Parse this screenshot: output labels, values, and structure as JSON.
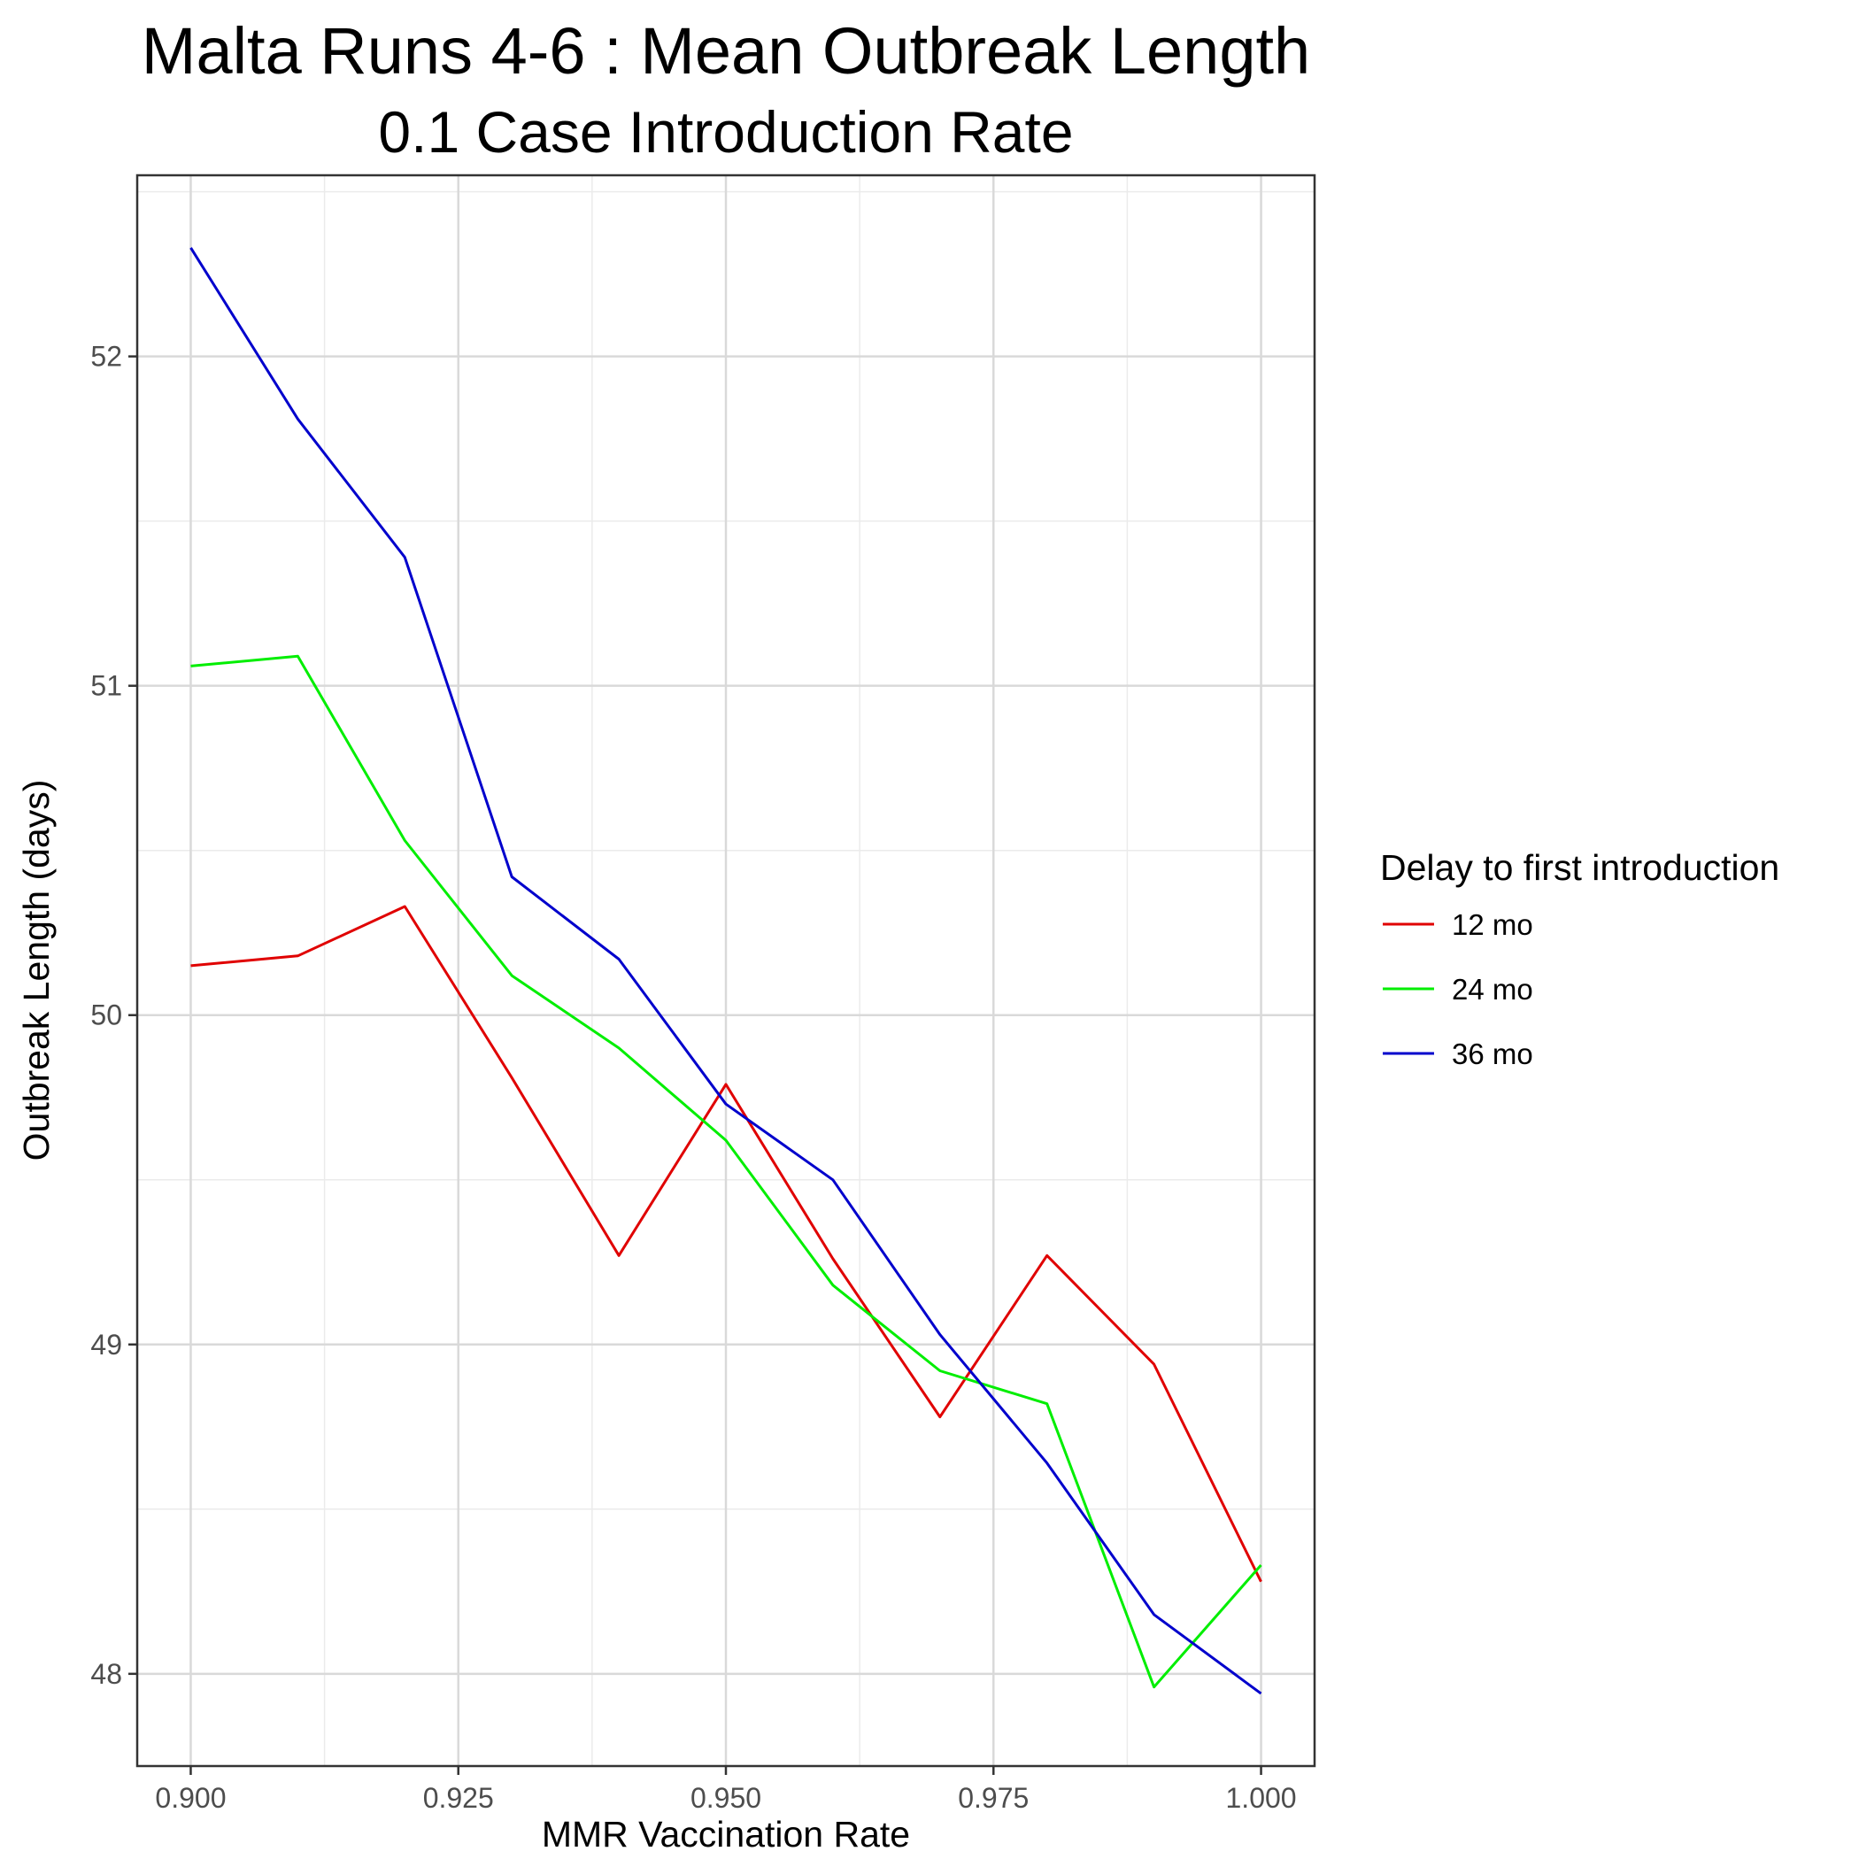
{
  "chart_data": {
    "type": "line",
    "title": "Malta Runs 4-6 : Mean Outbreak Length",
    "subtitle": "0.1 Case Introduction Rate",
    "xlabel": "MMR Vaccination Rate",
    "ylabel": "Outbreak Length (days)",
    "xlim": [
      0.895,
      1.005
    ],
    "ylim": [
      47.72,
      52.55
    ],
    "x_ticks": [
      0.9,
      0.925,
      0.95,
      0.975,
      1.0
    ],
    "x_tick_labels": [
      "0.900",
      "0.925",
      "0.950",
      "0.975",
      "1.000"
    ],
    "y_ticks": [
      48,
      49,
      50,
      51,
      52
    ],
    "y_tick_labels": [
      "48",
      "49",
      "50",
      "51",
      "52"
    ],
    "grid": true,
    "legend": {
      "title": "Delay to first introduction",
      "position": "right"
    },
    "x": [
      0.9,
      0.91,
      0.92,
      0.93,
      0.94,
      0.95,
      0.96,
      0.97,
      0.98,
      0.99,
      1.0
    ],
    "series": [
      {
        "name": "12 mo",
        "color": "#e00000",
        "values": [
          50.15,
          50.18,
          50.33,
          49.81,
          49.27,
          49.79,
          49.26,
          48.78,
          49.27,
          48.94,
          48.28
        ]
      },
      {
        "name": "24 mo",
        "color": "#00ee00",
        "values": [
          51.06,
          51.09,
          50.53,
          50.12,
          49.9,
          49.62,
          49.18,
          48.92,
          48.82,
          47.96,
          48.33
        ]
      },
      {
        "name": "36 mo",
        "color": "#0000cc",
        "values": [
          52.33,
          51.81,
          51.39,
          50.42,
          50.17,
          49.73,
          49.5,
          49.03,
          48.64,
          48.18,
          47.94
        ]
      }
    ]
  }
}
